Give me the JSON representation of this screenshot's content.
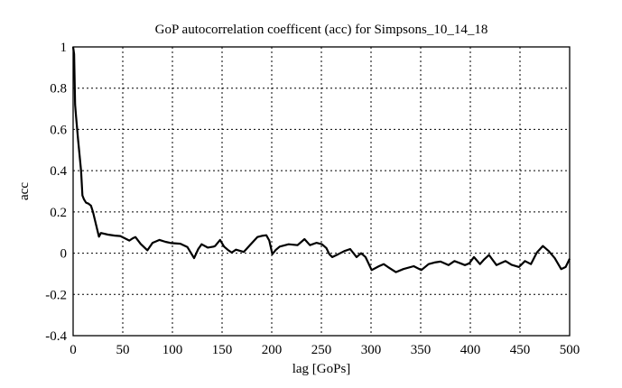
{
  "chart_data": {
    "type": "line",
    "title": "GoP autocorrelation coefficent (acc) for Simpsons_10_14_18",
    "xlabel": "lag [GoPs]",
    "ylabel": "acc",
    "xlim": [
      0,
      500
    ],
    "ylim": [
      -0.4,
      1
    ],
    "xticks": [
      0,
      50,
      100,
      150,
      200,
      250,
      300,
      350,
      400,
      450,
      500
    ],
    "xtick_labels": [
      "0",
      "50",
      "100",
      "150",
      "200",
      "250",
      "300",
      "350",
      "400",
      "450",
      "500"
    ],
    "yticks": [
      -0.4,
      -0.2,
      0,
      0.2,
      0.4,
      0.6,
      0.8,
      1
    ],
    "ytick_labels": [
      "-0.4",
      "-0.2",
      "0",
      "0.2",
      "0.4",
      "0.6",
      "0.8",
      "1"
    ],
    "grid": true,
    "legend": "none",
    "series": [
      {
        "name": "acc",
        "color": "#000000",
        "x": [
          0,
          1,
          2,
          3,
          5,
          8,
          9.4,
          11,
          13,
          15.5,
          18,
          20,
          23,
          26,
          28,
          35,
          42,
          47.5,
          53,
          56.6,
          60,
          62.7,
          68,
          74.8,
          80,
          87,
          93,
          99,
          108,
          115,
          121.8,
          126,
          129.4,
          135.5,
          141.5,
          143,
          148,
          152,
          156,
          159.7,
          164,
          171.8,
          178,
          185.5,
          190,
          194.5,
          197.5,
          200.6,
          204,
          208,
          217,
          226,
          233,
          238.5,
          245,
          250.6,
          255,
          258,
          261,
          267,
          273,
          279,
          285.5,
          290,
          294.5,
          300.6,
          308,
          312.7,
          317,
          325,
          332.5,
          343,
          350.6,
          358,
          364,
          370,
          378,
          384,
          390,
          394.5,
          399,
          403.6,
          409.7,
          414,
          418.8,
          426.4,
          435.5,
          441.5,
          449,
          455,
          461,
          467,
          473,
          479,
          485,
          491.5,
          496,
          500
        ],
        "y": [
          1.0,
          0.965,
          0.72,
          0.66,
          0.55,
          0.4,
          0.28,
          0.26,
          0.245,
          0.24,
          0.23,
          0.2,
          0.14,
          0.08,
          0.098,
          0.09,
          0.085,
          0.083,
          0.07,
          0.061,
          0.072,
          0.078,
          0.045,
          0.014,
          0.05,
          0.064,
          0.055,
          0.049,
          0.046,
          0.03,
          -0.024,
          0.02,
          0.043,
          0.027,
          0.032,
          0.035,
          0.064,
          0.032,
          0.015,
          0.003,
          0.017,
          0.006,
          0.039,
          0.078,
          0.084,
          0.087,
          0.061,
          -0.005,
          0.015,
          0.032,
          0.043,
          0.039,
          0.068,
          0.039,
          0.05,
          0.043,
          0.025,
          -0.005,
          -0.019,
          -0.005,
          0.01,
          0.02,
          -0.019,
          0.0,
          -0.019,
          -0.082,
          -0.063,
          -0.053,
          -0.067,
          -0.092,
          -0.077,
          -0.063,
          -0.082,
          -0.053,
          -0.045,
          -0.041,
          -0.058,
          -0.038,
          -0.049,
          -0.058,
          -0.049,
          -0.019,
          -0.053,
          -0.03,
          -0.009,
          -0.058,
          -0.038,
          -0.056,
          -0.067,
          -0.038,
          -0.053,
          0.003,
          0.035,
          0.01,
          -0.024,
          -0.077,
          -0.067,
          -0.027
        ]
      }
    ]
  }
}
